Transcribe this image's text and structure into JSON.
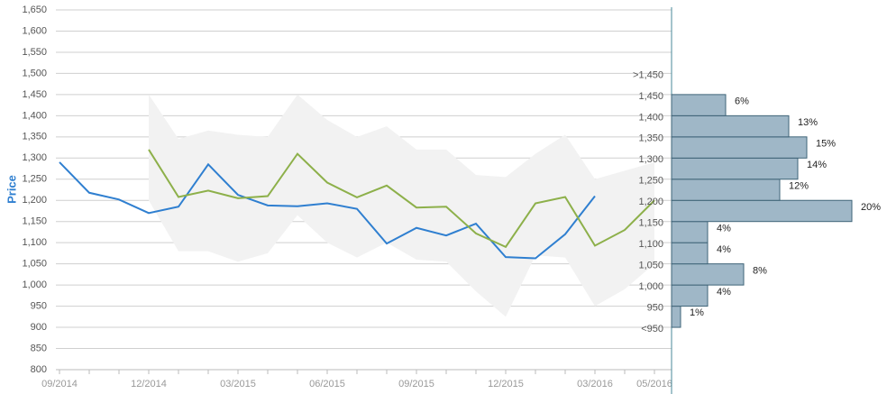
{
  "chart_data": {
    "type": "line",
    "y_label": "Price",
    "categories": [
      "09/2014",
      null,
      null,
      "12/2014",
      null,
      null,
      "03/2015",
      null,
      null,
      "06/2015",
      null,
      null,
      "09/2015",
      null,
      null,
      "12/2015",
      null,
      null,
      "03/2016",
      null,
      "05/2016"
    ],
    "ylim": [
      800,
      1650
    ],
    "yticks": [
      800,
      850,
      900,
      950,
      {
        "value": 1000,
        "label": "1,000"
      },
      {
        "value": 1050,
        "label": "1,050"
      },
      {
        "value": 1100,
        "label": "1,100"
      },
      {
        "value": 1150,
        "label": "1,150"
      },
      {
        "value": 1200,
        "label": "1,200"
      },
      {
        "value": 1250,
        "label": "1,250"
      },
      {
        "value": 1300,
        "label": "1,300"
      },
      {
        "value": 1350,
        "label": "1,350"
      },
      {
        "value": 1400,
        "label": "1,400"
      },
      {
        "value": 1450,
        "label": "1,450"
      },
      {
        "value": 1500,
        "label": "1,500"
      },
      {
        "value": 1550,
        "label": "1,550"
      },
      {
        "value": 1600,
        "label": "1,600"
      },
      {
        "value": 1650,
        "label": "1,650"
      }
    ],
    "grid": true,
    "band": {
      "color": "#f2f2f2",
      "upper": [
        null,
        null,
        null,
        1450,
        1345,
        1365,
        1355,
        1350,
        1450,
        1390,
        1350,
        1375,
        1320,
        1320,
        1260,
        1255,
        1310,
        1355,
        1250,
        1270,
        1290
      ],
      "lower": [
        null,
        null,
        null,
        1200,
        1080,
        1080,
        1055,
        1075,
        1165,
        1100,
        1065,
        1100,
        1060,
        1055,
        985,
        925,
        1070,
        1065,
        950,
        990,
        1050
      ]
    },
    "series": [
      {
        "color": "#2f7fd0",
        "values": [
          1290,
          1218,
          1202,
          1170,
          1185,
          1285,
          1213,
          1188,
          1186,
          1193,
          1180,
          1098,
          1135,
          1117,
          1145,
          1066,
          1063,
          1120,
          1210,
          null,
          null
        ]
      },
      {
        "color": "#8db04a",
        "values": [
          null,
          null,
          null,
          1320,
          1208,
          1223,
          1205,
          1210,
          1310,
          1242,
          1207,
          1235,
          1183,
          1185,
          1122,
          1090,
          1193,
          1208,
          1093,
          1130,
          1200
        ]
      }
    ],
    "histogram": {
      "color": "#9fb7c7",
      "edge_color": "#3f6478",
      "bins": [
        900,
        950,
        1000,
        1050,
        1100,
        1150,
        1200,
        1250,
        1300,
        1350,
        1400,
        1450
      ],
      "values": [
        1,
        4,
        8,
        4,
        4,
        20,
        12,
        14,
        15,
        13,
        6
      ],
      "value_labels": [
        "1%",
        "4%",
        "8%",
        "4%",
        "4%",
        "20%",
        "12%",
        "14%",
        "15%",
        "13%",
        "6%"
      ],
      "bin_labels": [
        "<950",
        "950",
        "1,000",
        "1,050",
        "1,100",
        "1,150",
        "1,200",
        "1,250",
        "1,300",
        "1,350",
        "1,400",
        "1,450",
        ">1,450"
      ]
    }
  }
}
